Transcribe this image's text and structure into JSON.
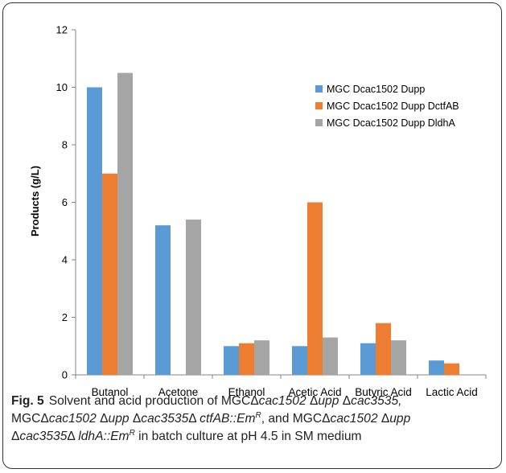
{
  "chart_data": {
    "type": "bar",
    "categories": [
      "Butanol",
      "Acetone",
      "Ethanol",
      "Acetic Acid",
      "Butyric Acid",
      "Lactic Acid"
    ],
    "series": [
      {
        "name": "MGC Dcac1502 Dupp",
        "color": "#5b9bd5",
        "values": [
          10.0,
          5.2,
          1.0,
          1.0,
          1.1,
          0.5
        ]
      },
      {
        "name": "MGC Dcac1502 Dupp DctfAB",
        "color": "#ed7d31",
        "values": [
          7.0,
          0.0,
          1.1,
          6.0,
          1.8,
          0.4
        ]
      },
      {
        "name": "MGC Dcac1502 Dupp DldhA",
        "color": "#a5a5a5",
        "values": [
          10.5,
          5.4,
          1.2,
          1.3,
          1.2,
          0.0
        ]
      }
    ],
    "ylabel": "Products (g/L)",
    "ylim": [
      0,
      12
    ],
    "yticks": [
      0,
      2,
      4,
      6,
      8,
      10,
      12
    ],
    "grid": false,
    "legend_position": "upper-right inside"
  },
  "caption": {
    "fig_label": "Fig. 5",
    "line1": [
      {
        "t": "Solvent and acid production of MGCΔ",
        "i": false
      },
      {
        "t": "cac1502",
        "i": true
      },
      {
        "t": " Δ",
        "i": false
      },
      {
        "t": "upp",
        "i": true
      },
      {
        "t": " Δ",
        "i": false
      },
      {
        "t": "cac3535,",
        "i": true
      }
    ],
    "line2": [
      {
        "t": "MGCΔ",
        "i": false
      },
      {
        "t": "cac1502",
        "i": true
      },
      {
        "t": " Δ",
        "i": false
      },
      {
        "t": "upp",
        "i": true
      },
      {
        "t": " Δ",
        "i": false
      },
      {
        "t": "cac3535",
        "i": true
      },
      {
        "t": "Δ ",
        "i": false
      },
      {
        "t": "ctfAB::Em",
        "i": true
      },
      {
        "t": "R",
        "i": true,
        "sup": true
      },
      {
        "t": ", and MGCΔ",
        "i": false
      },
      {
        "t": "cac1502",
        "i": true
      },
      {
        "t": " Δ",
        "i": false
      },
      {
        "t": "upp",
        "i": true
      }
    ],
    "line3": [
      {
        "t": "Δ",
        "i": false
      },
      {
        "t": "cac3535",
        "i": true
      },
      {
        "t": "Δ ",
        "i": false
      },
      {
        "t": "ldhA::Em",
        "i": true
      },
      {
        "t": "R",
        "i": true,
        "sup": true
      },
      {
        "t": " in batch culture at pH 4.5 in SM medium",
        "i": false
      }
    ]
  }
}
